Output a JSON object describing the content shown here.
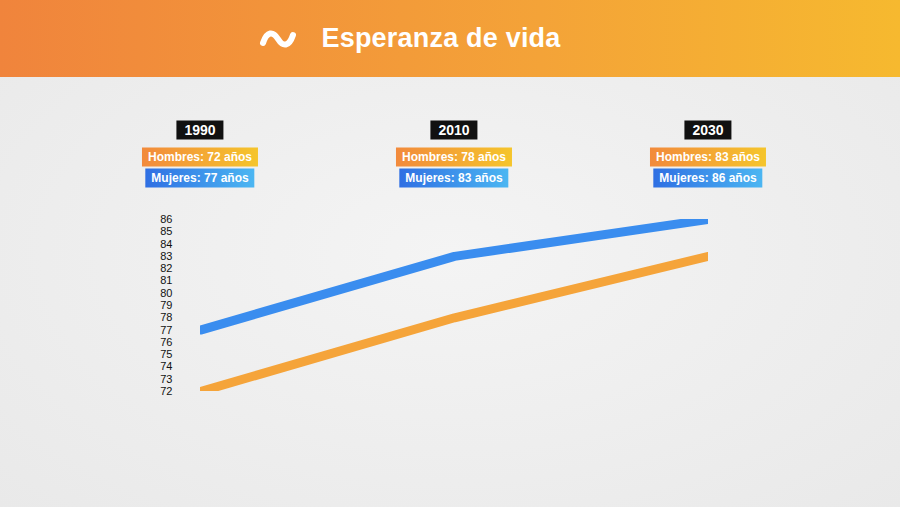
{
  "chart_data": {
    "type": "line",
    "title": "Esperanza de vida",
    "x": [
      1990,
      2010,
      2030
    ],
    "xlim": [
      1990,
      2030
    ],
    "xticks": [
      1990,
      2010,
      2030
    ],
    "ylim": [
      72,
      86
    ],
    "yticks": [
      72,
      73,
      74,
      75,
      76,
      77,
      78,
      79,
      80,
      81,
      82,
      83,
      84,
      85,
      86
    ],
    "grid": false,
    "series": [
      {
        "name": "Mujeres",
        "color": "#3a8def",
        "values": [
          77,
          83,
          86
        ],
        "value_labels": [
          "Mujeres: 77 años",
          "Mujeres: 83 años",
          "Mujeres: 86 años"
        ]
      },
      {
        "name": "Hombres",
        "color": "#f5a43a",
        "values": [
          72,
          78,
          83
        ],
        "value_labels": [
          "Hombres: 72 años",
          "Hombres: 78 años",
          "Hombres: 83 años"
        ]
      }
    ]
  }
}
